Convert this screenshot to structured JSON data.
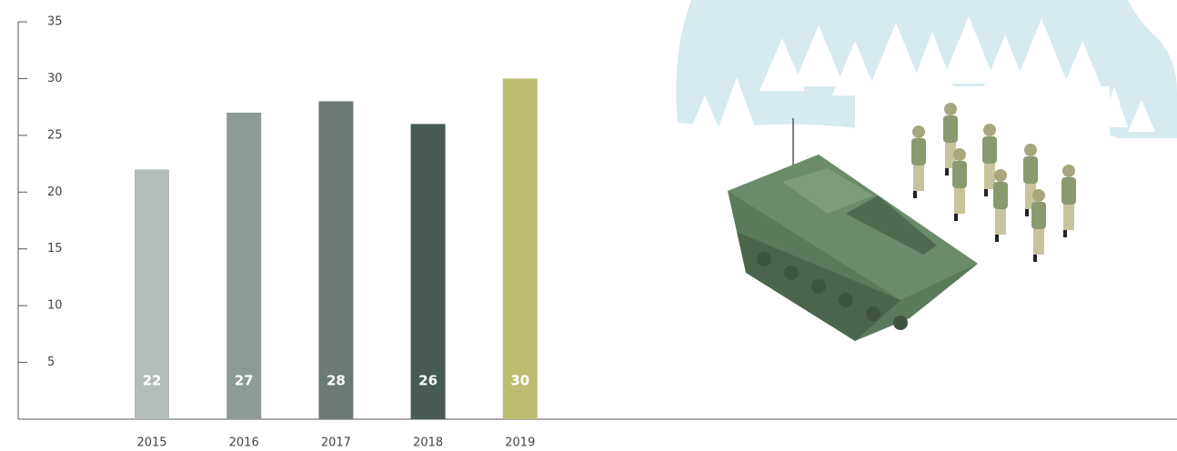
{
  "chart_data": {
    "type": "bar",
    "categories": [
      "2015",
      "2016",
      "2017",
      "2018",
      "2019"
    ],
    "values": [
      22,
      27,
      28,
      26,
      30
    ],
    "colors": [
      "#b3bcb8",
      "#8e9a95",
      "#6b7b74",
      "#475a55",
      "#bdbd72"
    ],
    "ylim": [
      0,
      35
    ],
    "yticks": [
      5,
      10,
      15,
      20,
      25,
      30,
      35
    ],
    "grid": false
  }
}
